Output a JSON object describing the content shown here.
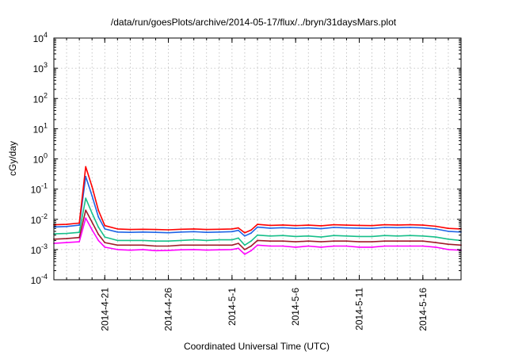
{
  "chart_data": {
    "type": "line",
    "title": "/data/run/goesPlots/archive/2014-05-17/flux/../bryn/31daysMars.plot",
    "xlabel": "Coordinated Universal Time (UTC)",
    "ylabel": "cGy/day",
    "yscale": "log",
    "ylim": [
      0.0001,
      10000
    ],
    "xlim": [
      "2014-04-17 00:00",
      "2014-05-19 00:00"
    ],
    "x_ticks": [
      "2014-4-21",
      "2014-4-26",
      "2014-5-1",
      "2014-5-6",
      "2014-5-11",
      "2014-5-16"
    ],
    "y_ticks": [
      {
        "value": 0.0001,
        "base": "10",
        "exp": "-4"
      },
      {
        "value": 0.001,
        "base": "10",
        "exp": "-3"
      },
      {
        "value": 0.01,
        "base": "10",
        "exp": "-2"
      },
      {
        "value": 0.1,
        "base": "10",
        "exp": "-1"
      },
      {
        "value": 1,
        "base": "10",
        "exp": "0"
      },
      {
        "value": 10,
        "base": "10",
        "exp": "1"
      },
      {
        "value": 100,
        "base": "10",
        "exp": "2"
      },
      {
        "value": 1000,
        "base": "10",
        "exp": "3"
      },
      {
        "value": 10000,
        "base": "10",
        "exp": "4"
      }
    ],
    "grid": true,
    "legend": "none",
    "x": [
      "2014-04-17",
      "2014-04-18",
      "2014-04-19",
      "2014-04-19 12:00",
      "2014-04-20",
      "2014-04-20 12:00",
      "2014-04-21",
      "2014-04-22",
      "2014-04-23",
      "2014-04-24",
      "2014-04-25",
      "2014-04-26",
      "2014-04-27",
      "2014-04-28",
      "2014-04-29",
      "2014-04-30",
      "2014-05-01",
      "2014-05-01 12:00",
      "2014-05-02",
      "2014-05-02 12:00",
      "2014-05-03",
      "2014-05-04",
      "2014-05-05",
      "2014-05-06",
      "2014-05-07",
      "2014-05-08",
      "2014-05-09",
      "2014-05-10",
      "2014-05-11",
      "2014-05-12",
      "2014-05-13",
      "2014-05-14",
      "2014-05-15",
      "2014-05-16",
      "2014-05-17",
      "2014-05-18",
      "2014-05-19"
    ],
    "series": [
      {
        "color": "#ff0000",
        "values": [
          0.0066,
          0.0068,
          0.0075,
          0.55,
          0.12,
          0.02,
          0.0062,
          0.0048,
          0.0046,
          0.0047,
          0.0046,
          0.0045,
          0.0047,
          0.0048,
          0.0046,
          0.0047,
          0.0048,
          0.0052,
          0.0036,
          0.0044,
          0.0068,
          0.0063,
          0.0065,
          0.0062,
          0.0064,
          0.0061,
          0.0066,
          0.0064,
          0.0063,
          0.0062,
          0.0066,
          0.0065,
          0.0066,
          0.0064,
          0.0059,
          0.005,
          0.0048
        ]
      },
      {
        "color": "#1e64e6",
        "values": [
          0.0056,
          0.0058,
          0.0064,
          0.26,
          0.06,
          0.012,
          0.0048,
          0.0038,
          0.0037,
          0.0038,
          0.0037,
          0.0036,
          0.0038,
          0.0039,
          0.0037,
          0.0038,
          0.0039,
          0.0043,
          0.0028,
          0.0035,
          0.0055,
          0.0051,
          0.0053,
          0.005,
          0.0052,
          0.0049,
          0.0054,
          0.0052,
          0.0051,
          0.005,
          0.0054,
          0.0053,
          0.0054,
          0.0052,
          0.0048,
          0.004,
          0.0038
        ]
      },
      {
        "color": "#17bf8a",
        "values": [
          0.0033,
          0.0034,
          0.0037,
          0.05,
          0.016,
          0.0055,
          0.0026,
          0.002,
          0.002,
          0.002,
          0.0019,
          0.0019,
          0.002,
          0.0021,
          0.002,
          0.0021,
          0.0021,
          0.0024,
          0.0014,
          0.0019,
          0.003,
          0.0028,
          0.0029,
          0.0027,
          0.0028,
          0.0026,
          0.0029,
          0.0028,
          0.0027,
          0.0027,
          0.0029,
          0.0028,
          0.0029,
          0.0028,
          0.0026,
          0.0022,
          0.002
        ]
      },
      {
        "color": "#a01a2a",
        "values": [
          0.0022,
          0.0023,
          0.0025,
          0.02,
          0.008,
          0.0032,
          0.0017,
          0.0014,
          0.0014,
          0.0014,
          0.0013,
          0.0013,
          0.0014,
          0.0014,
          0.0014,
          0.0014,
          0.0014,
          0.0016,
          0.001,
          0.0013,
          0.002,
          0.0019,
          0.0019,
          0.0018,
          0.0019,
          0.0018,
          0.0019,
          0.0019,
          0.0018,
          0.0018,
          0.0019,
          0.0019,
          0.0019,
          0.0019,
          0.0017,
          0.0015,
          0.0014
        ]
      },
      {
        "color": "#ff00ff",
        "values": [
          0.0016,
          0.0017,
          0.0018,
          0.011,
          0.0045,
          0.002,
          0.0012,
          0.001,
          0.00095,
          0.001,
          0.00092,
          0.00094,
          0.00098,
          0.001,
          0.00096,
          0.00098,
          0.001,
          0.0011,
          0.0007,
          0.00092,
          0.0014,
          0.0013,
          0.0013,
          0.0012,
          0.0013,
          0.0012,
          0.0013,
          0.0013,
          0.0012,
          0.0012,
          0.0013,
          0.0013,
          0.0013,
          0.0013,
          0.0012,
          0.001,
          0.00095
        ]
      }
    ]
  }
}
